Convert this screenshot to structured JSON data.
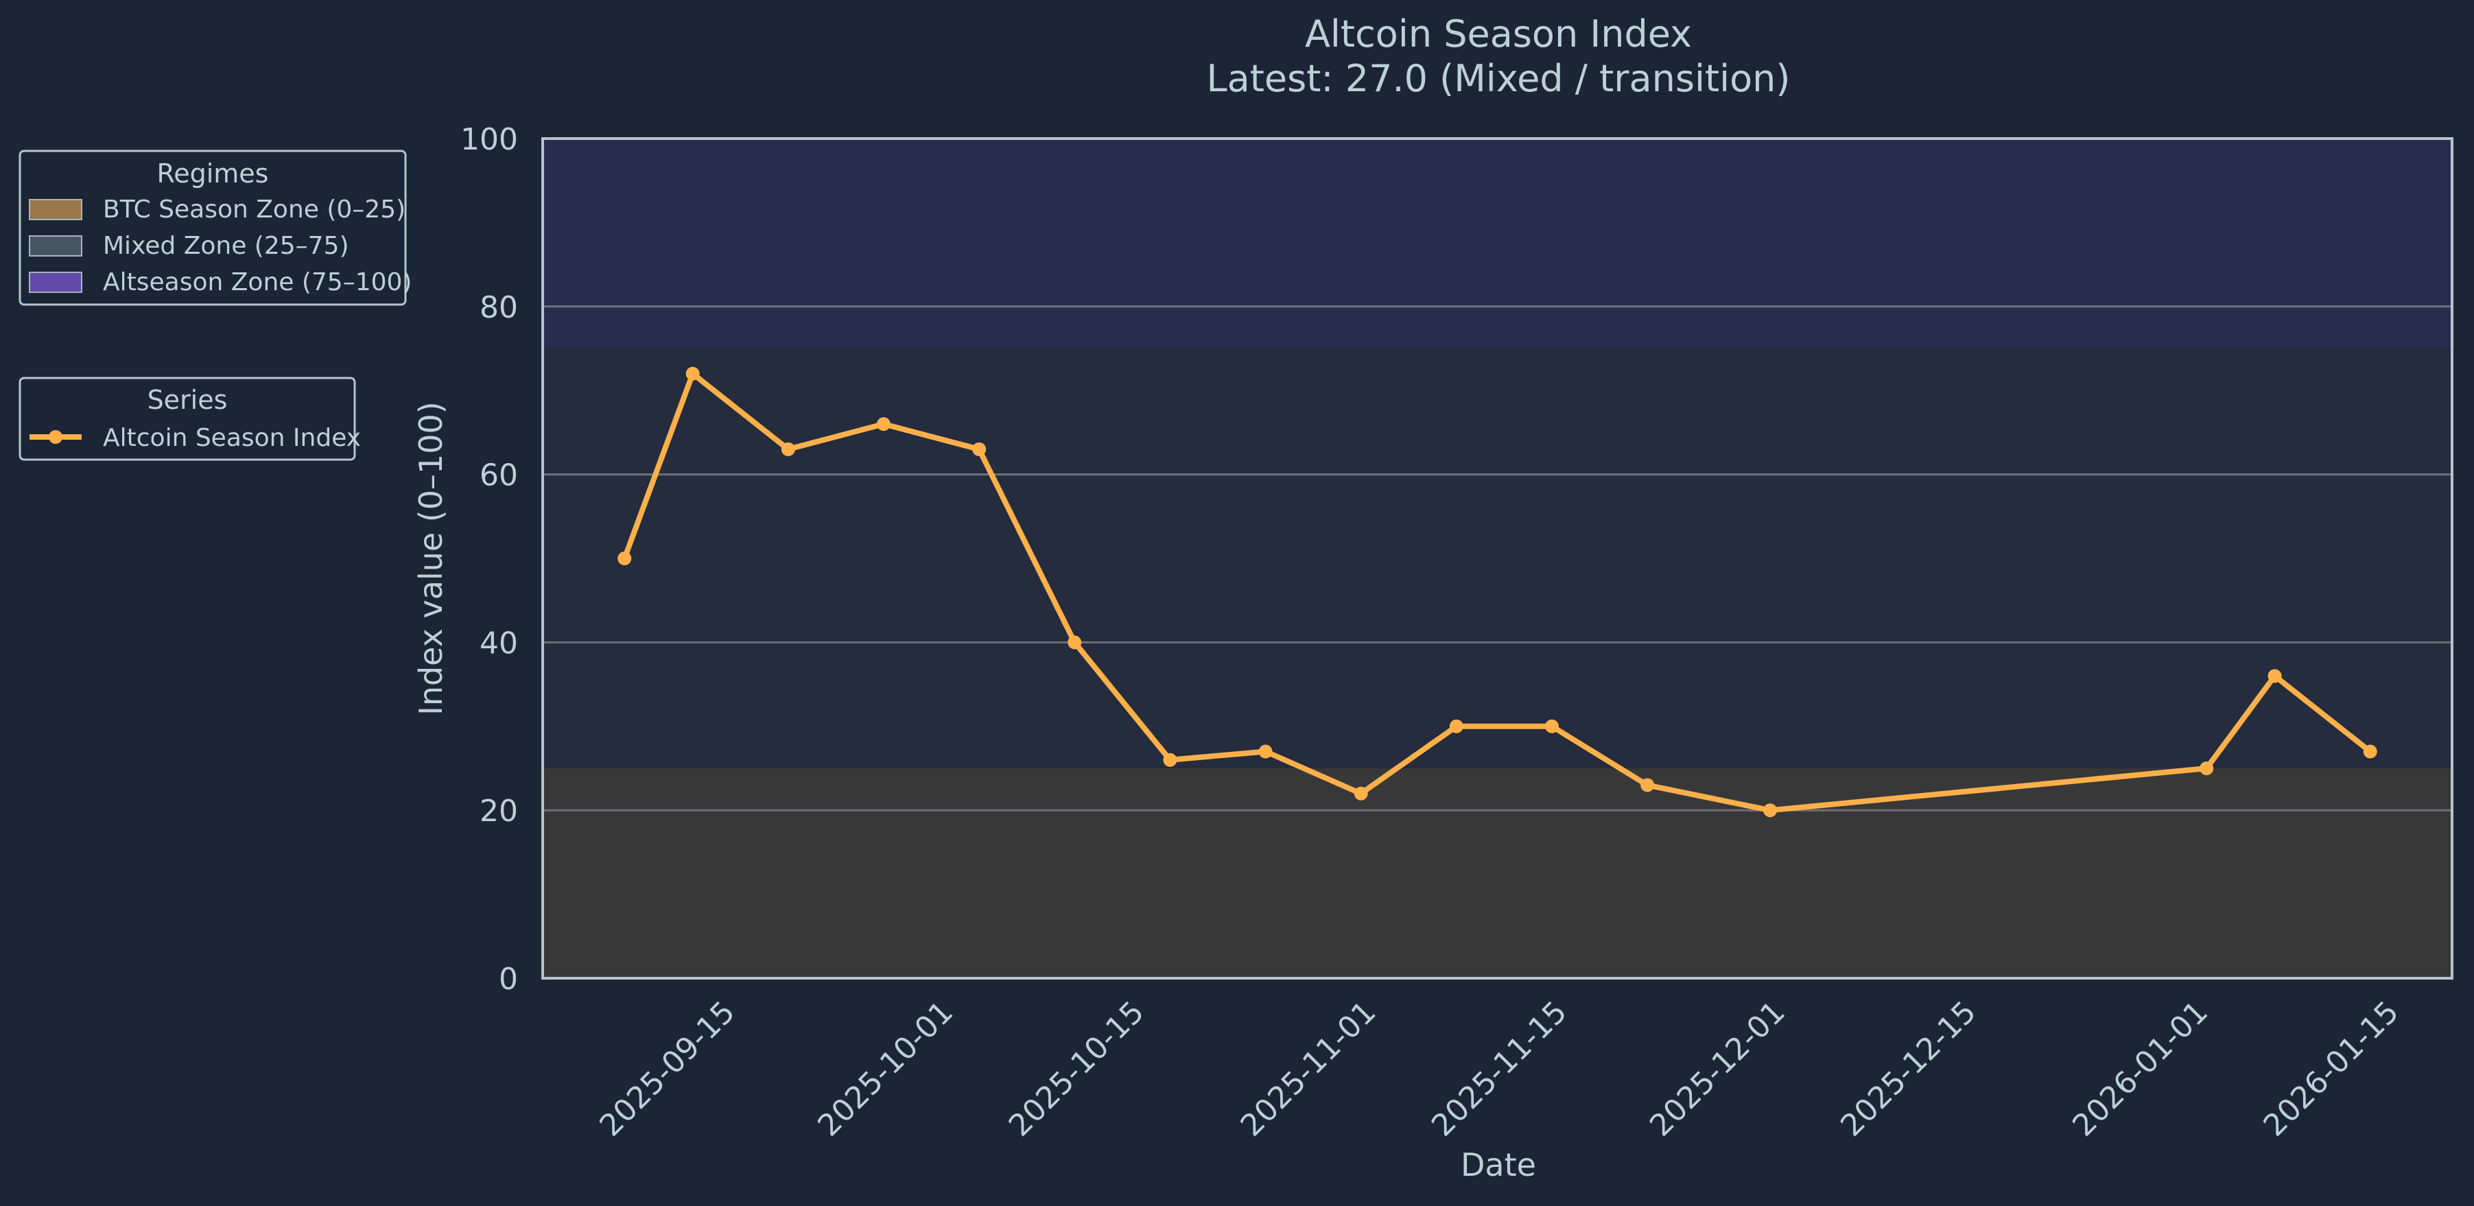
{
  "chart_data": {
    "type": "line",
    "title": "Altcoin Season Index",
    "subtitle": "Latest: 27.0 (Mixed / transition)",
    "xlabel": "Date",
    "ylabel": "Index value (0–100)",
    "ylim": [
      0,
      100
    ],
    "xlim": [
      "2025-09-02",
      "2026-01-20"
    ],
    "yticks": [
      0,
      20,
      40,
      60,
      80,
      100
    ],
    "xticks": [
      "2025-09-15",
      "2025-10-01",
      "2025-10-15",
      "2025-11-01",
      "2025-11-15",
      "2025-12-01",
      "2025-12-15",
      "2026-01-01",
      "2026-01-15"
    ],
    "grid": "horizontal",
    "legend_placement": "left, outside plot",
    "zones": [
      {
        "name": "BTC Season Zone (0–25)",
        "from": 0,
        "to": 25,
        "color": "#383838",
        "legend_color": "#a8814f"
      },
      {
        "name": "Mixed Zone (25–75)",
        "from": 25,
        "to": 75,
        "color": "#242c3d",
        "legend_color": "#4e5c66"
      },
      {
        "name": "Altseason Zone (75–100)",
        "from": 75,
        "to": 100,
        "color": "#282c4e",
        "legend_color": "#6a4fb8"
      }
    ],
    "series": [
      {
        "name": "Altcoin Season Index",
        "color": "#fdb04a",
        "x": [
          "2025-09-08",
          "2025-09-13",
          "2025-09-20",
          "2025-09-27",
          "2025-10-04",
          "2025-10-11",
          "2025-10-18",
          "2025-10-25",
          "2025-11-01",
          "2025-11-08",
          "2025-11-15",
          "2025-11-22",
          "2025-12-01",
          "2026-01-02",
          "2026-01-07",
          "2026-01-14"
        ],
        "values": [
          50,
          72,
          63,
          66,
          63,
          40,
          26,
          27,
          22,
          30,
          30,
          23,
          20,
          25,
          36,
          27
        ]
      }
    ]
  },
  "legends": {
    "regimes_title": "Regimes",
    "series_title": "Series"
  },
  "colors": {
    "background": "#1c2535",
    "text": "#bdd0d6",
    "axis": "#b4c6cc",
    "grid": "#6b7179"
  }
}
